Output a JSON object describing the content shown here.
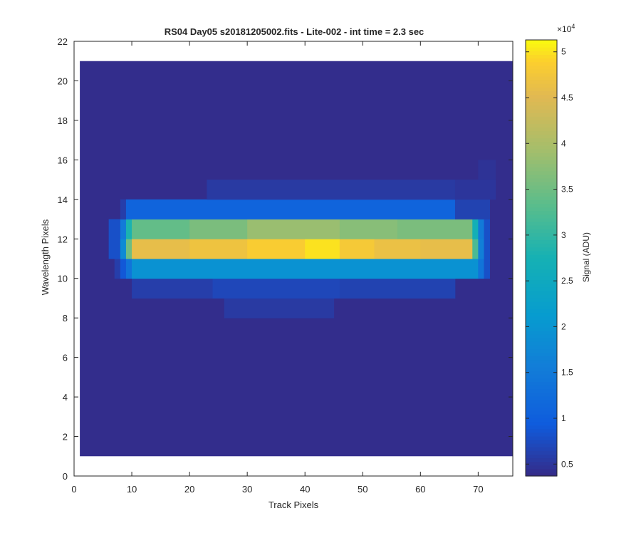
{
  "chart_data": {
    "type": "heatmap",
    "title": "RS04 Day05  s20181205002.fits - Lite-002 - int time = 2.3 sec",
    "xlabel": "Track Pixels",
    "ylabel": "Wavelength Pixels",
    "xlim": [
      0,
      76
    ],
    "ylim": [
      0,
      22
    ],
    "xticks": [
      0,
      10,
      20,
      30,
      40,
      50,
      60,
      70
    ],
    "yticks": [
      0,
      2,
      4,
      6,
      8,
      10,
      12,
      14,
      16,
      18,
      20,
      22
    ],
    "colormap": "parula",
    "colorbar": {
      "label": "Signal (ADU)",
      "exponent_label": "×10",
      "exponent": "4",
      "clim": [
        0.37,
        5.13
      ],
      "ticks": [
        0.5,
        1,
        1.5,
        2,
        2.5,
        3,
        3.5,
        4,
        4.5,
        5
      ],
      "tick_labels": [
        "0.5",
        "1",
        "1.5",
        "2",
        "2.5",
        "3",
        "3.5",
        "4",
        "4.5",
        "5"
      ],
      "placement": "right"
    },
    "grid": false,
    "image_extent": {
      "x": [
        1,
        76
      ],
      "y": [
        1,
        21
      ]
    },
    "background_value": 0.4,
    "rows": [
      {
        "y": [
          8,
          9
        ],
        "segments": [
          {
            "x": [
              26,
              45
            ],
            "value": 0.55
          }
        ]
      },
      {
        "y": [
          9,
          10
        ],
        "segments": [
          {
            "x": [
              10,
              24
            ],
            "value": 0.6
          },
          {
            "x": [
              24,
              46
            ],
            "value": 0.7
          },
          {
            "x": [
              46,
              66
            ],
            "value": 0.65
          }
        ]
      },
      {
        "y": [
          10,
          11
        ],
        "segments": [
          {
            "x": [
              7,
              8
            ],
            "value": 0.6
          },
          {
            "x": [
              8,
              9
            ],
            "value": 0.9
          },
          {
            "x": [
              9,
              10
            ],
            "value": 1.4
          },
          {
            "x": [
              10,
              70
            ],
            "value": 1.95
          },
          {
            "x": [
              70,
              71
            ],
            "value": 1.4
          },
          {
            "x": [
              71,
              72
            ],
            "value": 0.8
          }
        ]
      },
      {
        "y": [
          11,
          12
        ],
        "segments": [
          {
            "x": [
              6,
              8
            ],
            "value": 0.8
          },
          {
            "x": [
              8,
              9
            ],
            "value": 1.8
          },
          {
            "x": [
              9,
              10
            ],
            "value": 3.5
          },
          {
            "x": [
              10,
              20
            ],
            "value": 4.6
          },
          {
            "x": [
              20,
              30
            ],
            "value": 4.7
          },
          {
            "x": [
              30,
              40
            ],
            "value": 4.85
          },
          {
            "x": [
              40,
              46
            ],
            "value": 5.0
          },
          {
            "x": [
              46,
              52
            ],
            "value": 4.8
          },
          {
            "x": [
              52,
              60
            ],
            "value": 4.65
          },
          {
            "x": [
              60,
              69
            ],
            "value": 4.6
          },
          {
            "x": [
              69,
              70
            ],
            "value": 3.2
          },
          {
            "x": [
              70,
              71
            ],
            "value": 1.6
          },
          {
            "x": [
              71,
              72
            ],
            "value": 0.8
          }
        ]
      },
      {
        "y": [
          12,
          13
        ],
        "segments": [
          {
            "x": [
              6,
              8
            ],
            "value": 0.8
          },
          {
            "x": [
              8,
              9
            ],
            "value": 1.5
          },
          {
            "x": [
              9,
              10
            ],
            "value": 2.8
          },
          {
            "x": [
              10,
              20
            ],
            "value": 3.4
          },
          {
            "x": [
              20,
              30
            ],
            "value": 3.6
          },
          {
            "x": [
              30,
              46
            ],
            "value": 3.85
          },
          {
            "x": [
              46,
              56
            ],
            "value": 3.7
          },
          {
            "x": [
              56,
              69
            ],
            "value": 3.6
          },
          {
            "x": [
              69,
              70
            ],
            "value": 2.7
          },
          {
            "x": [
              70,
              71
            ],
            "value": 1.5
          },
          {
            "x": [
              71,
              72
            ],
            "value": 0.8
          }
        ]
      },
      {
        "y": [
          13,
          14
        ],
        "segments": [
          {
            "x": [
              8,
              9
            ],
            "value": 0.6
          },
          {
            "x": [
              9,
              66
            ],
            "value": 1.1
          },
          {
            "x": [
              66,
              72
            ],
            "value": 0.65
          }
        ]
      },
      {
        "y": [
          14,
          15
        ],
        "segments": [
          {
            "x": [
              23,
              66
            ],
            "value": 0.55
          },
          {
            "x": [
              66,
              73
            ],
            "value": 0.5
          }
        ]
      },
      {
        "y": [
          15,
          16
        ],
        "segments": [
          {
            "x": [
              70,
              73
            ],
            "value": 0.47
          }
        ]
      }
    ]
  }
}
